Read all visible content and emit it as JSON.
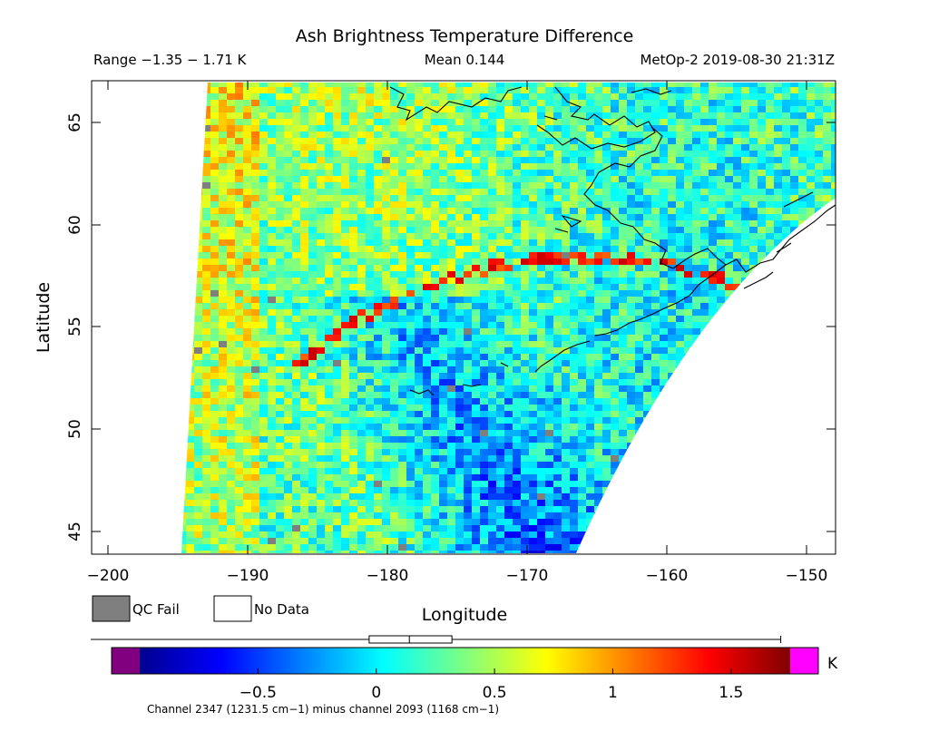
{
  "header": {
    "title": "Ash Brightness Temperature Difference",
    "range": "Range −1.35 − 1.71 K",
    "mean": "Mean 0.144",
    "source": "MetOp-2 2019-08-30 21:31Z"
  },
  "map": {
    "ylabel": "Latitude",
    "xlabel": "Longitude",
    "lat_ticks": [
      "45",
      "50",
      "55",
      "60",
      "65"
    ],
    "lon_ticks": [
      "−200",
      "−190",
      "−180",
      "−170",
      "−160",
      "−150"
    ],
    "lon_range": [
      -200,
      -148
    ],
    "lat_range": [
      44,
      67
    ],
    "features": [
      "pixelated BTD swath",
      "Alaska / Aleutian coastlines",
      "no-data region outside swath"
    ]
  },
  "legend": {
    "qc_fail": "QC Fail",
    "no_data": "No Data",
    "qc_fail_color": "#7f7f7f",
    "no_data_color": "#ffffff"
  },
  "colorbar": {
    "unit": "K",
    "ticks": [
      "−0.5",
      "0",
      "0.5",
      "1",
      "1.5"
    ],
    "tick_values": [
      -0.5,
      0,
      0.5,
      1,
      1.5
    ],
    "range": [
      -1.0,
      1.75
    ],
    "under_color": "#800080",
    "over_color": "#ff00ff",
    "boxplot": {
      "min": -1.35,
      "q1": -0.03,
      "median": 0.14,
      "q3": 0.32,
      "max": 1.71
    },
    "caption": "Channel 2347 (1231.5 cm−1) minus channel 2093 (1168 cm−1)"
  }
}
